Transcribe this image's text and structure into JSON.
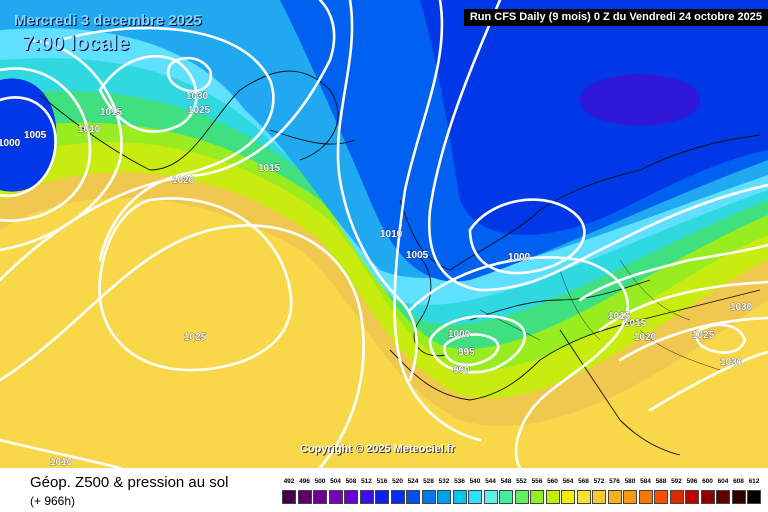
{
  "header": {
    "date": "Mercredi 3 decembre 2025",
    "time": "7:00 locale",
    "run": "Run CFS Daily (9 mois) 0 Z du Vendredi 24 octobre 2025"
  },
  "copyright": "Copyright © 2025 Meteociel.fr",
  "footer": {
    "parameter": "Géop. Z500 & pression au sol",
    "horizon": "(+ 966h)"
  },
  "legend": {
    "values": [
      "492",
      "496",
      "500",
      "504",
      "508",
      "512",
      "516",
      "520",
      "524",
      "528",
      "532",
      "536",
      "540",
      "544",
      "548",
      "552",
      "556",
      "560",
      "564",
      "568",
      "572",
      "576",
      "580",
      "584",
      "588",
      "592",
      "596",
      "600",
      "604",
      "608",
      "612"
    ],
    "colors": [
      "#4a0048",
      "#5a006a",
      "#6b0091",
      "#7a00b8",
      "#6a00d8",
      "#3a10e8",
      "#1020f0",
      "#0030f0",
      "#0050f0",
      "#0078f0",
      "#00a0f0",
      "#00c8f0",
      "#30e0ff",
      "#60f0e8",
      "#40f0a0",
      "#60f060",
      "#90f020",
      "#c0f000",
      "#f0f000",
      "#f8e030",
      "#f8c830",
      "#f8b020",
      "#f89810",
      "#f87800",
      "#f85000",
      "#e02800",
      "#c00000",
      "#900000",
      "#600000",
      "#300000",
      "#000000"
    ]
  },
  "isobars": [
    {
      "label": "1000",
      "anchor": "far-west"
    },
    {
      "label": "1005",
      "anchor": "west-greenland"
    },
    {
      "label": "1010",
      "anchor": "west-greenland"
    },
    {
      "label": "1015",
      "anchor": "greenland"
    },
    {
      "label": "1030",
      "anchor": "greenland-high"
    },
    {
      "label": "1025",
      "anchor": "greenland-high"
    },
    {
      "label": "1020",
      "anchor": "labrador-sea"
    },
    {
      "label": "1015",
      "anchor": "iceland"
    },
    {
      "label": "1010",
      "anchor": "north-sea"
    },
    {
      "label": "1005",
      "anchor": "north-sea"
    },
    {
      "label": "1000",
      "anchor": "scandinavia-low"
    },
    {
      "label": "1025",
      "anchor": "atlantic-high"
    },
    {
      "label": "1000",
      "anchor": "bay-of-biscay"
    },
    {
      "label": "995",
      "anchor": "bay-of-biscay"
    },
    {
      "label": "990",
      "anchor": "bay-of-biscay"
    },
    {
      "label": "1015",
      "anchor": "central-europe"
    },
    {
      "label": "1015",
      "anchor": "central-europe"
    },
    {
      "label": "1020",
      "anchor": "central-europe"
    },
    {
      "label": "1025",
      "anchor": "eastern-europe"
    },
    {
      "label": "1030",
      "anchor": "eastern-europe"
    },
    {
      "label": "1030",
      "anchor": "eastern-europe"
    },
    {
      "label": "1010",
      "anchor": "south-atlantic"
    }
  ]
}
